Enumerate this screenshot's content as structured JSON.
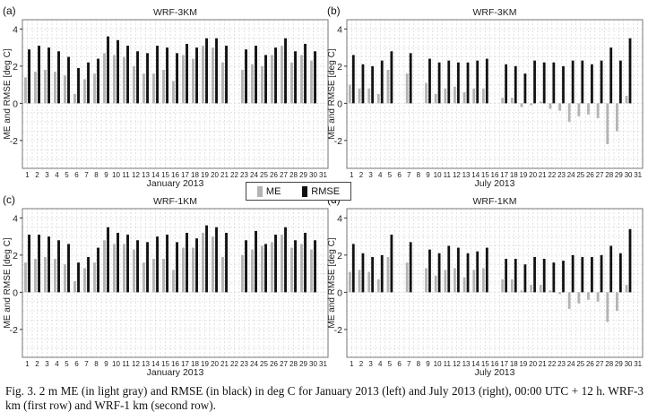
{
  "figure_caption": "Fig. 3. 2 m ME (in light gray) and RMSE (in black) in deg C for January 2013 (left) and July 2013 (right), 00:00 UTC + 12 h. WRF-3 km (first row) and WRF-1 km (second row).",
  "legend": {
    "items": [
      {
        "label": "ME",
        "color": "#b4b4b4"
      },
      {
        "label": "RMSE",
        "color": "#111111"
      }
    ]
  },
  "colors": {
    "me": "#b4b4b4",
    "rmse": "#111111",
    "grid": "#cfcfcf",
    "frame": "#777777"
  },
  "chart_data": [
    {
      "panel": "(a)",
      "type": "bar",
      "title": "WRF-3KM",
      "xlabel": "January 2013",
      "ylabel": "ME and RMSE [deg C]",
      "ylim": [
        -3.5,
        4.5
      ],
      "yticks": [
        -2,
        0,
        2,
        4
      ],
      "categories": [
        "1",
        "2",
        "3",
        "4",
        "5",
        "6",
        "7",
        "8",
        "9",
        "10",
        "11",
        "12",
        "13",
        "14",
        "15",
        "16",
        "17",
        "18",
        "19",
        "20",
        "21",
        "22",
        "23",
        "24",
        "25",
        "26",
        "27",
        "28",
        "29",
        "30",
        "31"
      ],
      "series": [
        {
          "name": "ME",
          "values": [
            1.4,
            1.7,
            1.8,
            1.7,
            1.5,
            0.5,
            1.3,
            1.6,
            2.7,
            2.6,
            2.5,
            2.0,
            1.6,
            1.6,
            1.8,
            1.2,
            2.6,
            2.4,
            3.1,
            3.0,
            2.2,
            null,
            1.8,
            2.1,
            2.0,
            2.6,
            3.1,
            2.2,
            2.6,
            2.3,
            null
          ]
        },
        {
          "name": "RMSE",
          "values": [
            2.9,
            3.1,
            3.0,
            2.8,
            2.5,
            1.9,
            2.2,
            2.4,
            3.6,
            3.4,
            3.1,
            2.8,
            2.7,
            3.1,
            3.0,
            2.7,
            3.2,
            3.0,
            3.5,
            3.5,
            3.1,
            null,
            2.9,
            3.1,
            2.6,
            3.0,
            3.5,
            2.8,
            3.2,
            2.8,
            null
          ]
        }
      ]
    },
    {
      "panel": "(b)",
      "type": "bar",
      "title": "WRF-3KM",
      "xlabel": "July 2013",
      "ylabel": "ME and RMSE [deg C]",
      "ylim": [
        -3.5,
        4.5
      ],
      "yticks": [
        -2,
        0,
        2,
        4
      ],
      "categories": [
        "1",
        "2",
        "3",
        "4",
        "5",
        "6",
        "7",
        "8",
        "9",
        "10",
        "11",
        "12",
        "13",
        "14",
        "15",
        "16",
        "17",
        "18",
        "19",
        "20",
        "21",
        "22",
        "23",
        "24",
        "25",
        "26",
        "27",
        "28",
        "29",
        "30",
        "31"
      ],
      "series": [
        {
          "name": "ME",
          "values": [
            1.0,
            0.8,
            0.8,
            0.5,
            1.8,
            null,
            1.6,
            null,
            1.1,
            0.5,
            0.8,
            0.9,
            0.6,
            0.8,
            0.8,
            null,
            0.3,
            0.3,
            -0.2,
            -0.1,
            0.1,
            -0.3,
            -0.4,
            -1.0,
            -0.7,
            -0.6,
            -0.8,
            -2.2,
            -1.5,
            0.4,
            null
          ]
        },
        {
          "name": "RMSE",
          "values": [
            2.6,
            2.1,
            2.0,
            2.3,
            2.8,
            null,
            2.7,
            null,
            2.4,
            2.2,
            2.3,
            2.2,
            2.2,
            2.3,
            2.4,
            null,
            2.1,
            2.0,
            1.6,
            2.3,
            2.2,
            2.2,
            2.0,
            2.3,
            2.3,
            2.1,
            2.3,
            3.0,
            2.3,
            3.5,
            null
          ]
        }
      ]
    },
    {
      "panel": "(c)",
      "type": "bar",
      "title": "WRF-1KM",
      "xlabel": "January 2013",
      "ylabel": "ME and RMSE [deg C]",
      "ylim": [
        -3.5,
        4.5
      ],
      "yticks": [
        -2,
        0,
        2,
        4
      ],
      "categories": [
        "1",
        "2",
        "3",
        "4",
        "5",
        "6",
        "7",
        "8",
        "9",
        "10",
        "11",
        "12",
        "13",
        "14",
        "15",
        "16",
        "17",
        "18",
        "19",
        "20",
        "21",
        "22",
        "23",
        "24",
        "25",
        "26",
        "27",
        "28",
        "29",
        "30",
        "31"
      ],
      "series": [
        {
          "name": "ME",
          "values": [
            1.6,
            1.8,
            1.9,
            1.8,
            1.5,
            0.6,
            1.3,
            1.6,
            2.8,
            2.6,
            2.6,
            2.3,
            1.6,
            1.8,
            1.8,
            1.2,
            2.4,
            2.4,
            3.2,
            3.0,
            1.9,
            null,
            2.0,
            2.3,
            2.5,
            2.7,
            3.1,
            2.4,
            2.6,
            2.3,
            null
          ]
        },
        {
          "name": "RMSE",
          "values": [
            3.1,
            3.1,
            3.0,
            2.8,
            2.6,
            1.6,
            1.9,
            2.4,
            3.5,
            3.2,
            3.1,
            2.8,
            2.7,
            3.0,
            3.1,
            2.7,
            3.2,
            2.9,
            3.6,
            3.5,
            3.2,
            null,
            2.8,
            3.3,
            2.6,
            3.1,
            3.5,
            2.8,
            3.2,
            2.8,
            null
          ]
        }
      ]
    },
    {
      "panel": "(d)",
      "type": "bar",
      "title": "WRF-1KM",
      "xlabel": "July 2013",
      "ylabel": "ME and RMSE [deg C]",
      "ylim": [
        -3.5,
        4.5
      ],
      "yticks": [
        -2,
        0,
        2,
        4
      ],
      "categories": [
        "1",
        "2",
        "3",
        "4",
        "5",
        "6",
        "7",
        "8",
        "9",
        "10",
        "11",
        "12",
        "13",
        "14",
        "15",
        "16",
        "17",
        "18",
        "19",
        "20",
        "21",
        "22",
        "23",
        "24",
        "25",
        "26",
        "27",
        "28",
        "29",
        "30",
        "31"
      ],
      "series": [
        {
          "name": "ME",
          "values": [
            1.1,
            1.2,
            1.1,
            0.7,
            1.9,
            null,
            1.6,
            null,
            1.3,
            0.9,
            1.2,
            1.3,
            0.8,
            1.2,
            1.3,
            null,
            0.7,
            0.7,
            0.1,
            0.4,
            0.4,
            0.1,
            -0.1,
            -0.9,
            -0.6,
            -0.4,
            -0.5,
            -1.6,
            -1.0,
            0.4,
            null
          ]
        },
        {
          "name": "RMSE",
          "values": [
            2.6,
            2.1,
            1.9,
            2.0,
            3.1,
            null,
            2.7,
            null,
            2.3,
            2.1,
            2.5,
            2.4,
            2.1,
            2.2,
            2.4,
            null,
            1.8,
            1.8,
            1.5,
            1.9,
            1.8,
            1.6,
            1.7,
            2.0,
            1.9,
            1.9,
            2.0,
            2.5,
            2.1,
            3.4,
            null
          ]
        }
      ]
    }
  ]
}
